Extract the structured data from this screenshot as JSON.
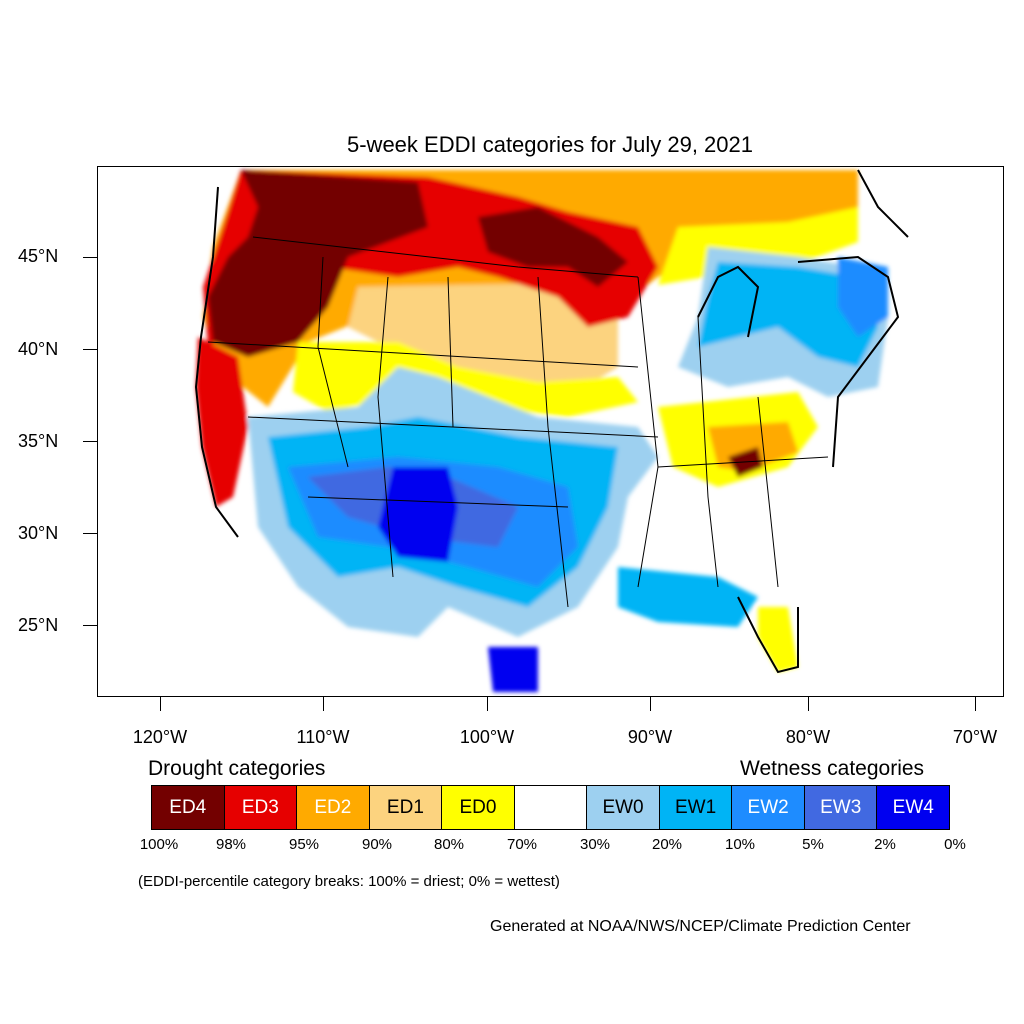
{
  "title": "5-week EDDI categories for July 29, 2021",
  "lat_labels": [
    "45°N",
    "40°N",
    "35°N",
    "30°N",
    "25°N"
  ],
  "lon_labels": [
    "120°W",
    "110°W",
    "100°W",
    "90°W",
    "80°W",
    "70°W"
  ],
  "legend": {
    "drought_heading": "Drought categories",
    "wetness_heading": "Wetness categories",
    "categories": [
      {
        "label": "ED4",
        "color": "#730000",
        "text_color": "#ffffff"
      },
      {
        "label": "ED3",
        "color": "#e60000",
        "text_color": "#ffffff"
      },
      {
        "label": "ED2",
        "color": "#ffaa00",
        "text_color": "#ffffff"
      },
      {
        "label": "ED1",
        "color": "#fcd37f",
        "text_color": "#000000"
      },
      {
        "label": "ED0",
        "color": "#ffff00",
        "text_color": "#000000"
      },
      {
        "label": "",
        "color": "#ffffff",
        "text_color": "#000000"
      },
      {
        "label": "EW0",
        "color": "#9dd0f0",
        "text_color": "#000000"
      },
      {
        "label": "EW1",
        "color": "#00b4f5",
        "text_color": "#000000"
      },
      {
        "label": "EW2",
        "color": "#1e8cff",
        "text_color": "#ffffff"
      },
      {
        "label": "EW3",
        "color": "#4169e1",
        "text_color": "#ffffff"
      },
      {
        "label": "EW4",
        "color": "#0000f0",
        "text_color": "#ffffff"
      }
    ],
    "percent_breaks": [
      "100%",
      "98%",
      "95%",
      "90%",
      "80%",
      "70%",
      "30%",
      "20%",
      "10%",
      "5%",
      "2%",
      "0%"
    ]
  },
  "note": "(EDDI-percentile category breaks: 100% = driest; 0% = wettest)",
  "credit": "Generated at NOAA/NWS/NCEP/Climate Prediction Center"
}
